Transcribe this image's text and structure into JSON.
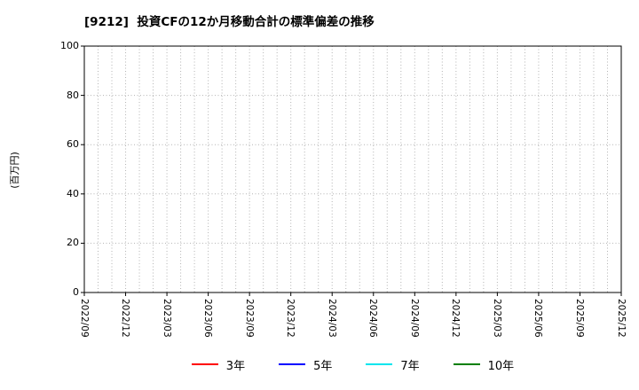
{
  "chart_data": {
    "type": "line",
    "title": "[9212]  投資CFの12か月移動合計の標準偏差の推移",
    "ylabel": "(百万円)",
    "xlabel": "",
    "ylim": [
      0,
      100
    ],
    "yticks": [
      0,
      20,
      40,
      60,
      80,
      100
    ],
    "x_tick_labels": [
      "2022/09",
      "2022/12",
      "2023/03",
      "2023/06",
      "2023/09",
      "2023/12",
      "2024/03",
      "2024/06",
      "2024/09",
      "2024/12",
      "2025/03",
      "2025/06",
      "2025/09",
      "2025/12"
    ],
    "months_per_tick": 3,
    "minor_vertical_grid_intervals": 39,
    "grid": true,
    "legend_position": "bottom",
    "series": [
      {
        "name": "3年",
        "color": "#ff0000",
        "values": []
      },
      {
        "name": "5年",
        "color": "#0000ff",
        "values": []
      },
      {
        "name": "7年",
        "color": "#00e5ee",
        "values": []
      },
      {
        "name": "10年",
        "color": "#007f00",
        "values": []
      }
    ]
  }
}
